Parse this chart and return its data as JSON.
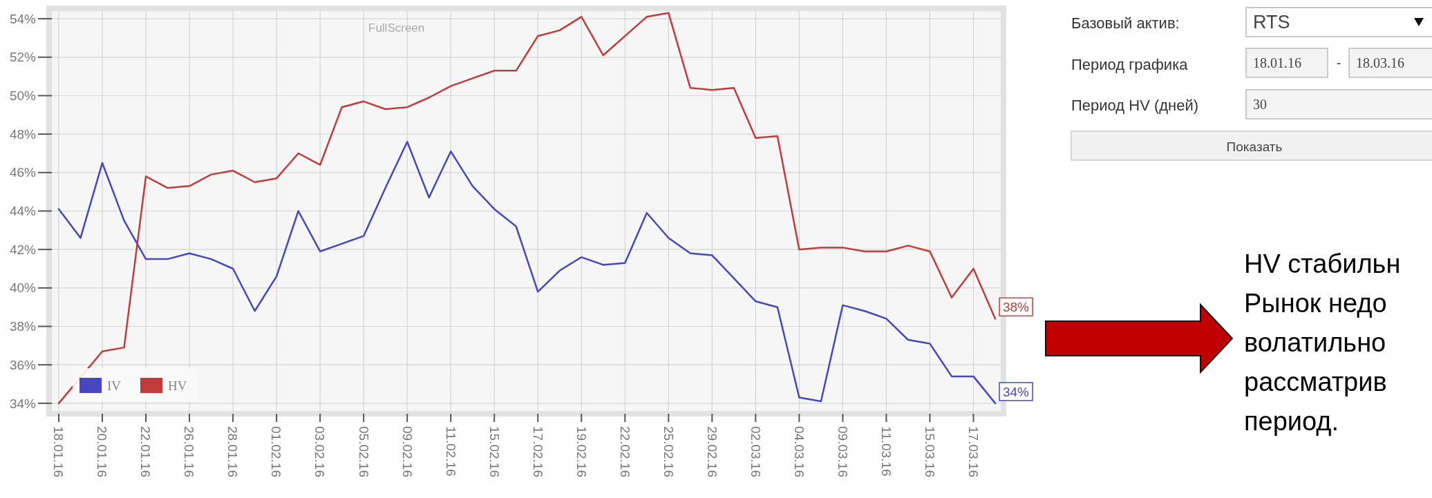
{
  "chart_data": [
    {
      "type": "line",
      "categories": [
        "18.01.16",
        null,
        "20.01.16",
        null,
        "22.01.16",
        null,
        "26.01.16",
        null,
        "28.01.16",
        null,
        "01.02.16",
        null,
        "03.02.16",
        null,
        "05.02.16",
        null,
        "09.02.16",
        null,
        "11.02.16",
        null,
        "15.02.16",
        null,
        "17.02.16",
        null,
        "19.02.16",
        null,
        "22.02.16",
        null,
        "25.02.16",
        null,
        "29.02.16",
        null,
        "02.03.16",
        null,
        "04.03.16",
        null,
        "09.03.16",
        null,
        "11.03.16",
        null,
        "15.03.16",
        null,
        "17.03.16",
        null
      ],
      "series": [
        {
          "name": "IV",
          "color": "#4646c2",
          "values": [
            44.1,
            42.6,
            46.5,
            43.5,
            41.5,
            41.5,
            41.8,
            41.5,
            41.0,
            38.8,
            40.6,
            44.0,
            41.9,
            42.3,
            42.7,
            45.2,
            47.6,
            44.7,
            47.1,
            45.3,
            44.1,
            43.2,
            39.8,
            40.9,
            41.6,
            41.2,
            41.3,
            43.9,
            42.6,
            41.8,
            41.7,
            40.5,
            39.3,
            39.0,
            34.3,
            34.1,
            39.1,
            38.8,
            38.4,
            37.3,
            37.1,
            35.4,
            35.4,
            34.0
          ],
          "value_labels": [
            null,
            null,
            null,
            null,
            null,
            null,
            null,
            null,
            null,
            null,
            null,
            null,
            null,
            null,
            null,
            null,
            null,
            null,
            null,
            null,
            null,
            null,
            null,
            null,
            null,
            null,
            null,
            null,
            null,
            null,
            null,
            null,
            null,
            null,
            null,
            null,
            null,
            null,
            null,
            null,
            null,
            null,
            null,
            "34%"
          ]
        },
        {
          "name": "HV",
          "color": "#c23b3b",
          "values": [
            34.0,
            null,
            36.7,
            36.9,
            45.8,
            45.2,
            45.3,
            45.9,
            46.1,
            45.5,
            45.7,
            47.0,
            46.4,
            49.4,
            49.7,
            49.3,
            49.4,
            49.9,
            50.5,
            50.9,
            51.3,
            51.3,
            53.1,
            53.4,
            54.1,
            52.1,
            53.1,
            54.1,
            54.3,
            50.4,
            50.3,
            50.4,
            47.8,
            47.9,
            42.0,
            42.1,
            42.1,
            41.9,
            41.9,
            42.2,
            41.9,
            39.5,
            41.0,
            38.4
          ],
          "value_labels": [
            null,
            null,
            null,
            null,
            null,
            null,
            null,
            null,
            null,
            null,
            null,
            null,
            null,
            null,
            null,
            null,
            null,
            null,
            null,
            null,
            null,
            null,
            null,
            null,
            null,
            null,
            null,
            null,
            null,
            null,
            null,
            null,
            null,
            null,
            null,
            null,
            null,
            null,
            null,
            null,
            null,
            null,
            null,
            "38%"
          ]
        }
      ],
      "ylim": [
        33.6,
        54.4
      ],
      "yticks": [
        {
          "value": 34,
          "label": "34%"
        },
        {
          "value": 36,
          "label": "36%"
        },
        {
          "value": 38,
          "label": "38%"
        },
        {
          "value": 40,
          "label": "40%"
        },
        {
          "value": 42,
          "label": "42%"
        },
        {
          "value": 44,
          "label": "44%"
        },
        {
          "value": 46,
          "label": "46%"
        },
        {
          "value": 48,
          "label": "48%"
        },
        {
          "value": 50,
          "label": "50%"
        },
        {
          "value": 52,
          "label": "52%"
        },
        {
          "value": 54,
          "label": "54%"
        }
      ],
      "grid": true,
      "legend": "bottom left",
      "annotations": [
        "FullScreen"
      ]
    },
    {
      "type": "other",
      "annotations": [
        "Базовый актив:",
        "RTS",
        "Период графика",
        "18.01.16",
        "-",
        "18.03.16",
        "Период HV (дней)",
        "30",
        "Показать",
        "HV стабильн\nРынок недо\nволатильно\nрассматрив\nпериод."
      ]
    }
  ]
}
